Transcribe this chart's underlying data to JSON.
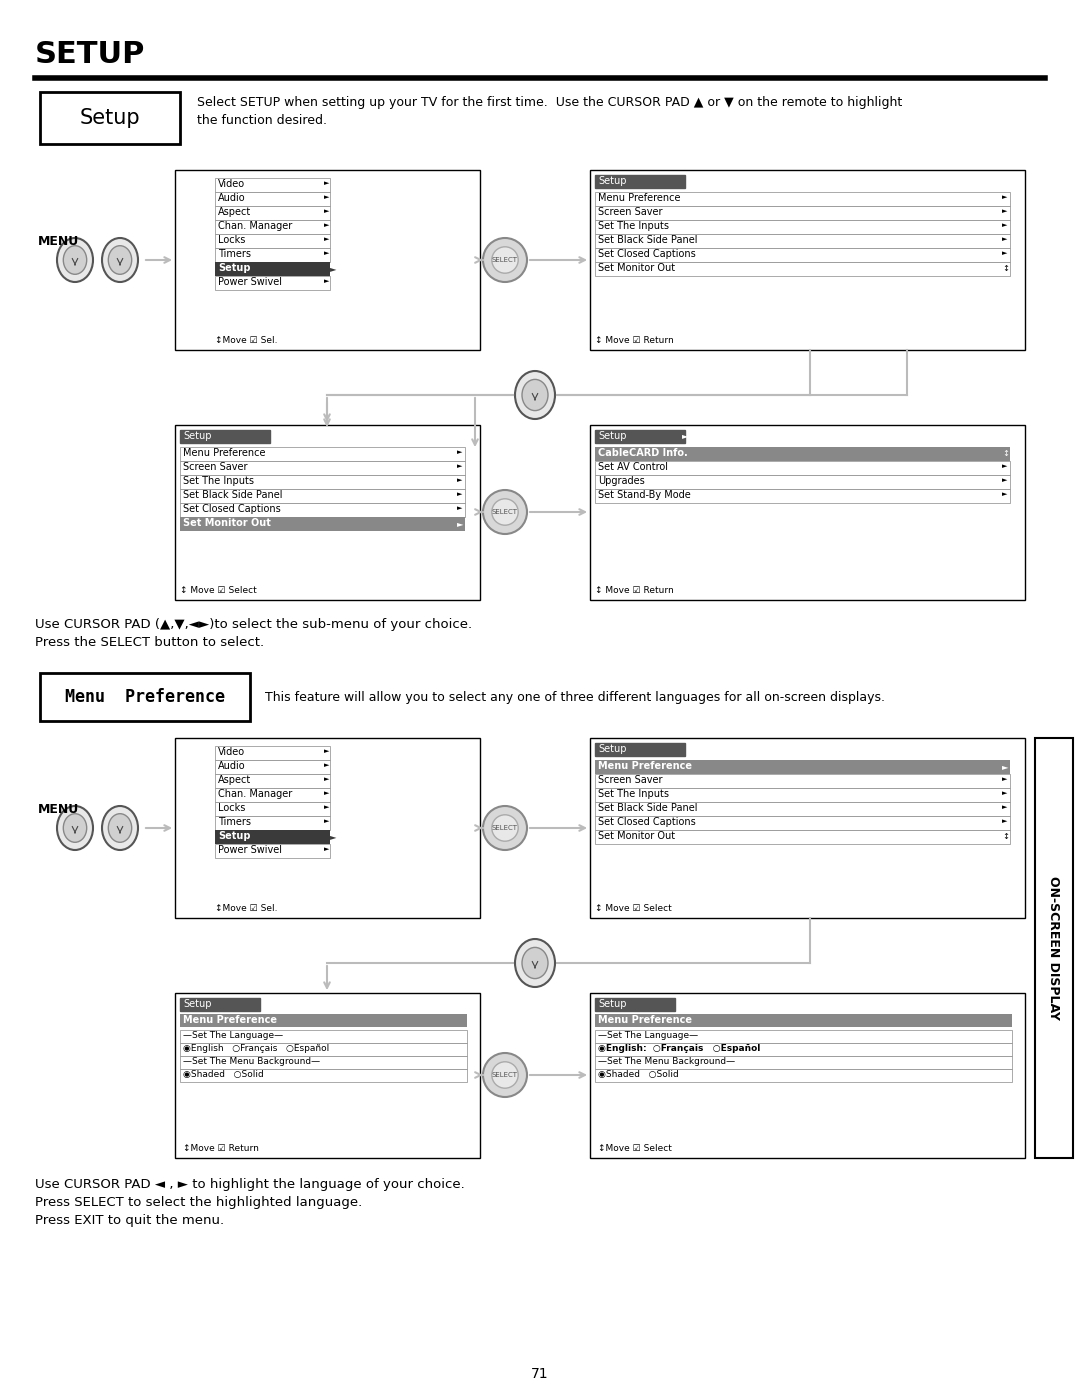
{
  "bg_color": "#ffffff",
  "title": "SETUP",
  "setup_label": "Setup",
  "setup_desc": "Select SETUP when setting up your TV for the first time.  Use the CURSOR PAD ▲ or ▼ on the remote to highlight\nthe function desired.",
  "menu_pref_label": "Menu  Preference",
  "menu_pref_desc": "This feature will allow you to select any one of three different languages for all on-screen displays.",
  "cursor_text1": "Use CURSOR PAD (▲,▼,◄►)to select the sub-menu of your choice.\nPress the SELECT button to select.",
  "cursor_text2": "Use CURSOR PAD ◄ , ► to highlight the language of your choice.\nPress SELECT to select the highlighted language.\nPress EXIT to quit the menu.",
  "page_num": "71",
  "side_text": "ON-SCREEN DISPLAY",
  "menu_items_left": [
    "Video",
    "Audio",
    "Aspect",
    "Chan. Manager",
    "Locks",
    "Timers",
    "Setup",
    "Power Swivel"
  ],
  "menu_bottom_text": "↕Move ☑ Sel.",
  "setup_menu_items": [
    "Menu Preference",
    "Screen Saver",
    "Set The Inputs",
    "Set Black Side Panel",
    "Set Closed Captions",
    "Set Monitor Out"
  ],
  "setup_menu_bottom_return": "↕ Move ☑ Return",
  "setup_menu_bottom_select": "↕ Move ☑ Select",
  "setup_menu_right2": [
    "CableCARD Info.",
    "Set AV Control",
    "Upgrades",
    "Set Stand-By Mode"
  ],
  "setup_right2_bottom": "↕ Move ☑ Return"
}
